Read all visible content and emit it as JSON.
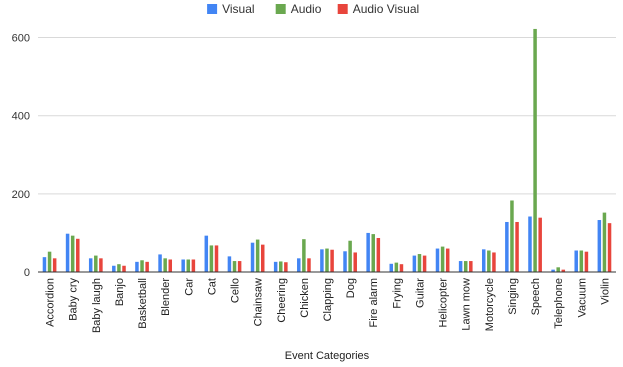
{
  "chart_data": {
    "type": "bar",
    "title": "",
    "xlabel": "Event Categories",
    "ylabel": "",
    "ylim": [
      0,
      650
    ],
    "yticks": [
      0,
      200,
      400,
      600
    ],
    "grid": true,
    "legend_position": "top-center",
    "categories": [
      "Accordion",
      "Baby cry",
      "Baby laugh",
      "Banjo",
      "Basketball",
      "Blender",
      "Car",
      "Cat",
      "Cello",
      "Chainsaw",
      "Cheering",
      "Chicken",
      "Clapping",
      "Dog",
      "Fire alarm",
      "Frying",
      "Guitar",
      "Helicopter",
      "Lawn mow",
      "Motorcycle",
      "Singing",
      "Speech",
      "Telephone",
      "Vacuum",
      "Violin"
    ],
    "series": [
      {
        "name": "Visual",
        "color": "#4285F4",
        "values": [
          38,
          98,
          35,
          16,
          26,
          45,
          32,
          93,
          40,
          75,
          26,
          35,
          58,
          53,
          100,
          21,
          42,
          60,
          28,
          58,
          128,
          142,
          6,
          55,
          133
        ]
      },
      {
        "name": "Audio",
        "color": "#6AA84F",
        "values": [
          52,
          93,
          42,
          20,
          30,
          35,
          32,
          68,
          28,
          83,
          27,
          84,
          60,
          80,
          97,
          24,
          46,
          65,
          28,
          55,
          183,
          622,
          12,
          55,
          152
        ]
      },
      {
        "name": "Audio Visual",
        "color": "#E8453C",
        "values": [
          35,
          85,
          35,
          16,
          26,
          32,
          32,
          68,
          28,
          70,
          25,
          35,
          57,
          50,
          87,
          20,
          42,
          60,
          28,
          50,
          128,
          139,
          6,
          52,
          125
        ]
      }
    ]
  }
}
